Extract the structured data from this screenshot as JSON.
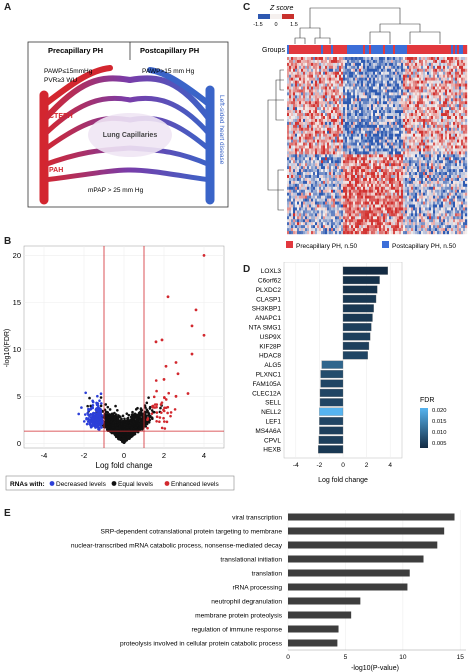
{
  "panel_a": {
    "label": "A",
    "precap_title": "Precapillary PH",
    "postcap_title": "Postcapillary PH",
    "pawp_low": "PAWP≤15mmHg",
    "pvr": "PVR≥3 WU",
    "pawp_high": "PAWP>15 mm Hg",
    "cteph": "CTEPH",
    "pah": "PAH",
    "lung_capillaries": "Lung Capillaries",
    "mpap": "mPAP > 25 mm Hg",
    "left_heart": "Left-sided heart disease",
    "colors": {
      "red": "#d3262f",
      "blue": "#3a64c8",
      "purple": "#6b3fa0"
    }
  },
  "panel_b": {
    "label": "B",
    "chart_data": {
      "type": "scatter",
      "xlabel": "Log fold change",
      "ylabel": "-log10(FDR)",
      "xlim": [
        -5,
        5
      ],
      "ylim": [
        -0.5,
        21
      ],
      "xticks": [
        "-4",
        "-2",
        "0",
        "2",
        "4"
      ],
      "yticks": [
        "0",
        "5",
        "10",
        "15",
        "20"
      ],
      "vlines": [
        -1,
        1
      ],
      "hline": 1.3,
      "enhanced_outliers": [
        [
          4.0,
          20.0
        ],
        [
          3.4,
          12.5
        ],
        [
          3.6,
          14.2
        ],
        [
          4.0,
          11.5
        ],
        [
          2.2,
          15.6
        ],
        [
          3.4,
          9.5
        ],
        [
          1.9,
          11.0
        ],
        [
          2.6,
          8.6
        ],
        [
          2.1,
          8.2
        ],
        [
          2.6,
          5.0
        ],
        [
          2.0,
          6.8
        ],
        [
          1.6,
          10.8
        ],
        [
          3.2,
          5.3
        ],
        [
          2.7,
          7.4
        ]
      ]
    },
    "legend": {
      "title": "RNAs with:",
      "decreased": "Decreased levels",
      "equal": "Equal levels",
      "enhanced": "Enhanced levels",
      "colors": {
        "decreased": "#2c3fd8",
        "equal": "#111111",
        "enhanced": "#d2282e"
      }
    }
  },
  "panel_c": {
    "label": "C",
    "zscore_title": "Z score",
    "zscore_ticks": [
      "-1.5",
      "0",
      "1.5"
    ],
    "groups_label": "Groups",
    "legend_precap": "Precapillary PH, n.50",
    "legend_postcap": "Postcapillary PH, n.50",
    "colors": {
      "precap": "#e2383e",
      "postcap": "#3c6ed8"
    }
  },
  "panel_d": {
    "label": "D",
    "chart_data": {
      "type": "bar",
      "categories": [
        "LOXL3",
        "C6orf62",
        "PLXDC2",
        "CLASP1",
        "SH3KBP1",
        "ANAPC1",
        "NTA SMG1",
        "USP9X",
        "KIF28P",
        "HDAC8",
        "ALG5",
        "PLXNC1",
        "FAM105A",
        "CLEC12A",
        "SELL",
        "NELL2",
        "LEF1",
        "MS4A6A",
        "CPVL",
        "HEXB"
      ],
      "values": [
        3.8,
        3.1,
        2.9,
        2.8,
        2.6,
        2.5,
        2.4,
        2.3,
        2.2,
        2.1,
        -1.8,
        -1.9,
        -1.9,
        -1.95,
        -1.95,
        -2.0,
        -2.0,
        -2.0,
        -2.05,
        -2.1
      ],
      "fdr": [
        0.003,
        0.004,
        0.004,
        0.005,
        0.005,
        0.005,
        0.006,
        0.006,
        0.006,
        0.007,
        0.012,
        0.008,
        0.007,
        0.007,
        0.007,
        0.024,
        0.007,
        0.006,
        0.006,
        0.005
      ],
      "xlabel": "Log fold change",
      "xticks": [
        "-4",
        "-2",
        "0",
        "2",
        "4"
      ],
      "xlim": [
        -5,
        5
      ],
      "legend_title": "FDR",
      "legend_ticks": [
        "0.020",
        "0.015",
        "0.010",
        "0.005"
      ]
    }
  },
  "panel_e": {
    "label": "E",
    "chart_data": {
      "type": "bar",
      "categories": [
        "viral transcription",
        "SRP-dependent cotranslational protein targeting to membrane",
        "nuclear-transcribed mRNA catabolic process, nonsense-mediated decay",
        "translational initiation",
        "translation",
        "rRNA processing",
        "neutrophil degranulation",
        "membrane protein proteolysis",
        "regulation of immune response",
        "proteolysis involved in cellular protein catabolic process"
      ],
      "values": [
        14.5,
        13.6,
        13.0,
        11.8,
        10.6,
        10.4,
        6.3,
        5.5,
        4.4,
        4.3
      ],
      "xlabel": "-log10(P-value)",
      "xticks": [
        "0",
        "5",
        "10",
        "15"
      ],
      "xlim": [
        0,
        15.5
      ]
    }
  }
}
